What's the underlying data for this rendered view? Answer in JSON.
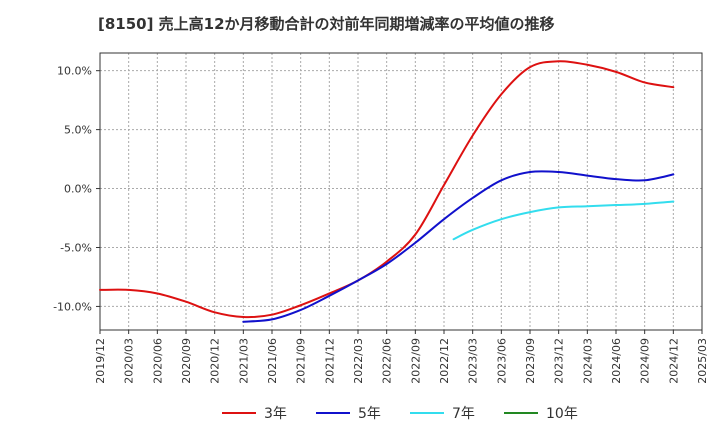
{
  "chart_data": {
    "type": "line",
    "title": "[8150]  売上高12か月移動合計の対前年同期増減率の平均値の推移",
    "xlabel": "",
    "ylabel": "",
    "x_ticks": [
      "2019/12",
      "2020/03",
      "2020/06",
      "2020/09",
      "2020/12",
      "2021/03",
      "2021/06",
      "2021/09",
      "2021/12",
      "2022/03",
      "2022/06",
      "2022/09",
      "2022/12",
      "2023/03",
      "2023/06",
      "2023/09",
      "2023/12",
      "2024/03",
      "2024/06",
      "2024/09",
      "2024/12",
      "2025/03"
    ],
    "y_ticks": [
      "10.0%",
      "5.0%",
      "0.0%",
      "-5.0%",
      "-10.0%"
    ],
    "ylim": [
      -12.0,
      11.5
    ],
    "grid": true,
    "legend_position": "bottom",
    "series": [
      {
        "name": "3年",
        "color": "#dd1111",
        "x": [
          "2019/12",
          "2020/03",
          "2020/06",
          "2020/09",
          "2020/12",
          "2021/03",
          "2021/06",
          "2021/09",
          "2021/12",
          "2022/03",
          "2022/06",
          "2022/09",
          "2022/12",
          "2023/03",
          "2023/06",
          "2023/09",
          "2023/12",
          "2024/03",
          "2024/06",
          "2024/09",
          "2024/12"
        ],
        "values": [
          -8.6,
          -8.6,
          -8.9,
          -9.6,
          -10.5,
          -10.9,
          -10.7,
          -9.9,
          -8.9,
          -7.8,
          -6.2,
          -3.9,
          0.3,
          4.5,
          8.0,
          10.3,
          10.8,
          10.5,
          9.9,
          9.0,
          8.6
        ]
      },
      {
        "name": "5年",
        "color": "#1111cc",
        "x": [
          "2021/03",
          "2021/06",
          "2021/09",
          "2021/12",
          "2022/03",
          "2022/06",
          "2022/09",
          "2022/12",
          "2023/03",
          "2023/06",
          "2023/09",
          "2023/12",
          "2024/03",
          "2024/06",
          "2024/09",
          "2024/12"
        ],
        "values": [
          -11.3,
          -11.1,
          -10.3,
          -9.1,
          -7.8,
          -6.4,
          -4.6,
          -2.6,
          -0.8,
          0.7,
          1.4,
          1.4,
          1.1,
          0.8,
          0.7,
          1.2
        ]
      },
      {
        "name": "7年",
        "color": "#33ddee",
        "x": [
          "2023/01",
          "2023/03",
          "2023/06",
          "2023/09",
          "2023/12",
          "2024/03",
          "2024/06",
          "2024/09",
          "2024/12"
        ],
        "values": [
          -4.3,
          -3.5,
          -2.6,
          -2.0,
          -1.6,
          -1.5,
          -1.4,
          -1.3,
          -1.1
        ]
      },
      {
        "name": "10年",
        "color": "#228822",
        "x": [],
        "values": []
      }
    ]
  }
}
